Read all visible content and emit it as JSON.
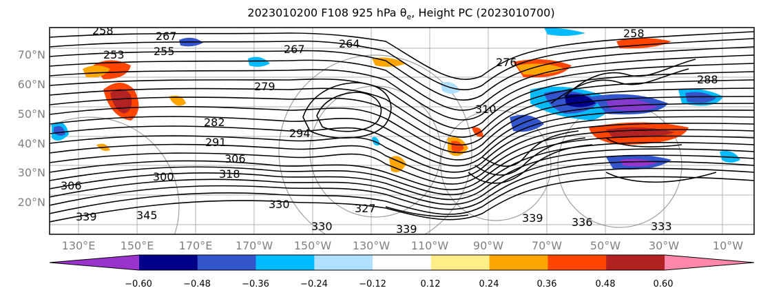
{
  "title_main": "2023010200 F108 925 hPa ",
  "title_theta": "θ",
  "title_sub": "e",
  "title_tail": ", Height PC (2023010700)",
  "lat_labels": [
    "70°N",
    "60°N",
    "50°N",
    "40°N",
    "30°N",
    "20°N"
  ],
  "lon_labels": [
    "130°E",
    "150°E",
    "170°E",
    "170°W",
    "150°W",
    "130°W",
    "110°W",
    "90°W",
    "70°W",
    "50°W",
    "30°W",
    "10°W"
  ],
  "colorbar": {
    "colors": [
      "#9933cc",
      "#000088",
      "#3355cc",
      "#00bbff",
      "#b0e0ff",
      "#ffffff",
      "#ffee88",
      "#ffa500",
      "#ff4500",
      "#b22222",
      "#ff88aa"
    ],
    "labels": [
      "−0.60",
      "−0.48",
      "−0.36",
      "−0.24",
      "−0.12",
      "0.12",
      "0.24",
      "0.36",
      "0.48",
      "0.60"
    ]
  },
  "contour_labels": [
    "258",
    "267",
    "255",
    "253",
    "264",
    "267",
    "279",
    "282",
    "294",
    "291",
    "300",
    "306",
    "306",
    "318",
    "330",
    "327",
    "339",
    "345",
    "339",
    "336",
    "330",
    "339",
    "333",
    "288",
    "258",
    "310",
    "276"
  ]
}
